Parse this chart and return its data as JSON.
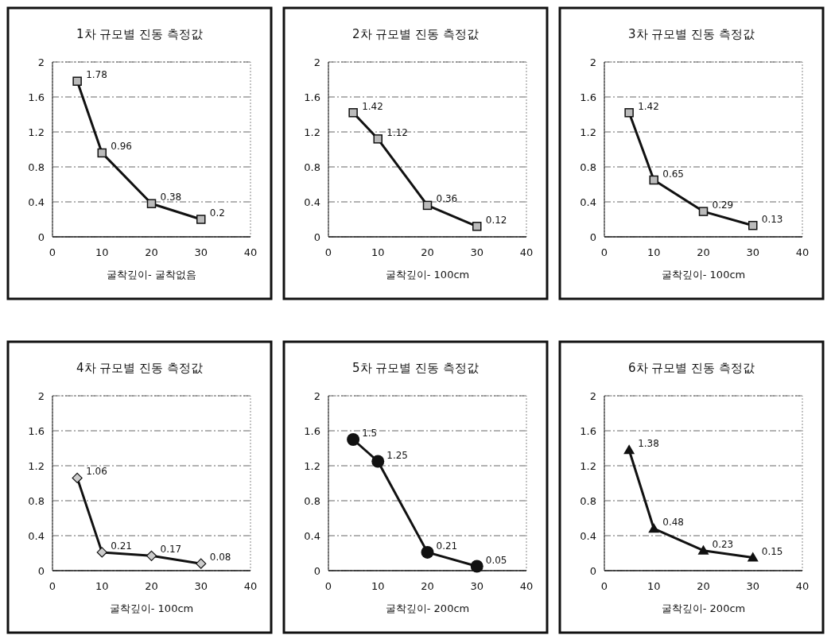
{
  "chart_data": [
    {
      "type": "line",
      "title": "1차 규모별 진동 측정값",
      "xlabel": "굴착깊이- 굴착없음",
      "x": [
        5,
        10,
        20,
        30
      ],
      "series": [
        {
          "color": "#111111",
          "values": [
            1.78,
            0.96,
            0.38,
            0.2
          ]
        }
      ],
      "marker": "square",
      "data_labels": true,
      "grid": "y",
      "xlim": [
        0,
        40
      ],
      "xticks": [
        0,
        10,
        20,
        30,
        40
      ],
      "ylim": [
        0,
        2
      ],
      "yticks": [
        0,
        0.4,
        0.8,
        1.2,
        1.6,
        2
      ]
    },
    {
      "type": "line",
      "title": "2차 규모별 진동 측정값",
      "xlabel": "굴착깊이- 100cm",
      "x": [
        5,
        10,
        20,
        30
      ],
      "series": [
        {
          "color": "#111111",
          "values": [
            1.42,
            1.12,
            0.36,
            0.12
          ]
        }
      ],
      "marker": "square",
      "data_labels": true,
      "grid": "y",
      "xlim": [
        0,
        40
      ],
      "xticks": [
        0,
        10,
        20,
        30,
        40
      ],
      "ylim": [
        0,
        2
      ],
      "yticks": [
        0,
        0.4,
        0.8,
        1.2,
        1.6,
        2
      ]
    },
    {
      "type": "line",
      "title": "3차 규모별 진동 측정값",
      "xlabel": "굴착깊이- 100cm",
      "x": [
        5,
        10,
        20,
        30
      ],
      "series": [
        {
          "color": "#111111",
          "values": [
            1.42,
            0.65,
            0.29,
            0.13
          ]
        }
      ],
      "marker": "square",
      "data_labels": true,
      "grid": "y",
      "xlim": [
        0,
        40
      ],
      "xticks": [
        0,
        10,
        20,
        30,
        40
      ],
      "ylim": [
        0,
        2
      ],
      "yticks": [
        0,
        0.4,
        0.8,
        1.2,
        1.6,
        2
      ]
    },
    {
      "type": "line",
      "title": "4차 규모별 진동 측정값",
      "xlabel": "굴착깊이- 100cm",
      "x": [
        5,
        10,
        20,
        30
      ],
      "series": [
        {
          "color": "#111111",
          "values": [
            1.06,
            0.21,
            0.17,
            0.08
          ]
        }
      ],
      "marker": "diamond",
      "data_labels": true,
      "grid": "y",
      "xlim": [
        0,
        40
      ],
      "xticks": [
        0,
        10,
        20,
        30,
        40
      ],
      "ylim": [
        0,
        2
      ],
      "yticks": [
        0,
        0.4,
        0.8,
        1.2,
        1.6,
        2
      ]
    },
    {
      "type": "line",
      "title": "5차 규모별 진동 측정값",
      "xlabel": "굴착깊이- 200cm",
      "x": [
        5,
        10,
        20,
        30
      ],
      "series": [
        {
          "color": "#111111",
          "values": [
            1.5,
            1.25,
            0.21,
            0.05
          ]
        }
      ],
      "marker": "circle",
      "data_labels": true,
      "grid": "y",
      "xlim": [
        0,
        40
      ],
      "xticks": [
        0,
        10,
        20,
        30,
        40
      ],
      "ylim": [
        0,
        2
      ],
      "yticks": [
        0,
        0.4,
        0.8,
        1.2,
        1.6,
        2
      ]
    },
    {
      "type": "line",
      "title": "6차 규모별 진동 측정값",
      "xlabel": "굴착깊이- 200cm",
      "x": [
        5,
        10,
        20,
        30
      ],
      "series": [
        {
          "color": "#111111",
          "values": [
            1.38,
            0.48,
            0.23,
            0.15
          ]
        }
      ],
      "marker": "triangle",
      "data_labels": true,
      "grid": "y",
      "xlim": [
        0,
        40
      ],
      "xticks": [
        0,
        10,
        20,
        30,
        40
      ],
      "ylim": [
        0,
        2
      ],
      "yticks": [
        0,
        0.4,
        0.8,
        1.2,
        1.6,
        2
      ]
    }
  ]
}
